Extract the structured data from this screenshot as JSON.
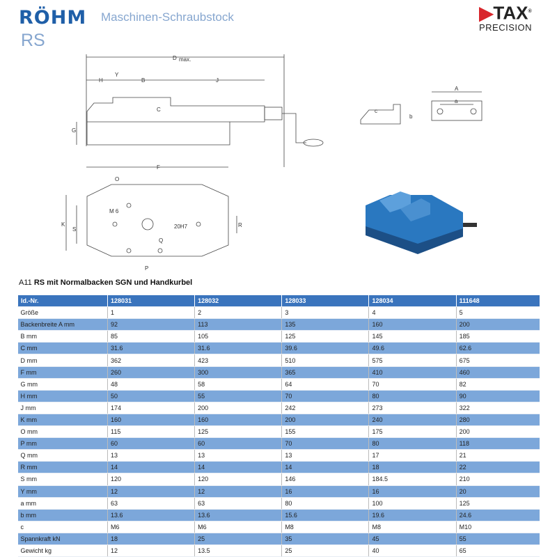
{
  "header": {
    "brand": "RÖHM",
    "subtitle": "Maschinen-Schraubstock",
    "model": "RS",
    "partner_logo": {
      "name": "TAX",
      "tagline": "PRECISION",
      "mark": "®"
    }
  },
  "drawing_labels": {
    "side": [
      "D",
      "max.",
      "H",
      "Y",
      "B",
      "J",
      "C",
      "G"
    ],
    "jaw": [
      "A",
      "a",
      "b",
      "c"
    ],
    "top": [
      "F",
      "O",
      "M 6",
      "K",
      "S",
      "20H7",
      "R",
      "Q",
      "P"
    ]
  },
  "section_title": {
    "prefix": "A11",
    "bold": "RS",
    "rest": "mit Normalbacken SGN und Handkurbel"
  },
  "colors": {
    "header_row": "#3a74bd",
    "alt_row": "#7ca7da",
    "brand": "#1f5fa8",
    "light_blue_text": "#86a6cf",
    "vise_blue": "#2a78c0"
  },
  "table": {
    "header": [
      "Id.-Nr.",
      "128031",
      "128032",
      "128033",
      "128034",
      "111648"
    ],
    "rows": [
      [
        "Größe",
        "1",
        "2",
        "3",
        "4",
        "5"
      ],
      [
        "Backenbreite A mm",
        "92",
        "113",
        "135",
        "160",
        "200"
      ],
      [
        "B mm",
        "85",
        "105",
        "125",
        "145",
        "185"
      ],
      [
        "C mm",
        "31.6",
        "31.6",
        "39.6",
        "49.6",
        "62.6"
      ],
      [
        "D mm",
        "362",
        "423",
        "510",
        "575",
        "675"
      ],
      [
        "F mm",
        "260",
        "300",
        "365",
        "410",
        "460"
      ],
      [
        "G mm",
        "48",
        "58",
        "64",
        "70",
        "82"
      ],
      [
        "H mm",
        "50",
        "55",
        "70",
        "80",
        "90"
      ],
      [
        "J mm",
        "174",
        "200",
        "242",
        "273",
        "322"
      ],
      [
        "K mm",
        "160",
        "160",
        "200",
        "240",
        "280"
      ],
      [
        "O mm",
        "115",
        "125",
        "155",
        "175",
        "200"
      ],
      [
        "P mm",
        "60",
        "60",
        "70",
        "80",
        "118"
      ],
      [
        "Q mm",
        "13",
        "13",
        "13",
        "17",
        "21"
      ],
      [
        "R mm",
        "14",
        "14",
        "14",
        "18",
        "22"
      ],
      [
        "S mm",
        "120",
        "120",
        "146",
        "184.5",
        "210"
      ],
      [
        "Y mm",
        "12",
        "12",
        "16",
        "16",
        "20"
      ],
      [
        "a mm",
        "63",
        "63",
        "80",
        "100",
        "125"
      ],
      [
        "b mm",
        "13.6",
        "13.6",
        "15.6",
        "19.6",
        "24.6"
      ],
      [
        "c",
        "M6",
        "M6",
        "M8",
        "M8",
        "M10"
      ],
      [
        "Spannkraft kN",
        "18",
        "25",
        "35",
        "45",
        "55"
      ],
      [
        "Gewicht kg",
        "12",
        "13.5",
        "25",
        "40",
        "65"
      ]
    ]
  }
}
